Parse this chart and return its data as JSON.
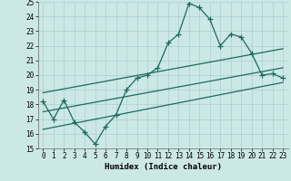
{
  "xlabel": "Humidex (Indice chaleur)",
  "bg_color": "#cce8e6",
  "line_color": "#1a6b5a",
  "grid_color": "#aacfcd",
  "xlim": [
    -0.5,
    23.5
  ],
  "ylim": [
    15,
    25
  ],
  "yticks": [
    15,
    16,
    17,
    18,
    19,
    20,
    21,
    22,
    23,
    24,
    25
  ],
  "xticks": [
    0,
    1,
    2,
    3,
    4,
    5,
    6,
    7,
    8,
    9,
    10,
    11,
    12,
    13,
    14,
    15,
    16,
    17,
    18,
    19,
    20,
    21,
    22,
    23
  ],
  "main_x": [
    0,
    1,
    2,
    3,
    4,
    5,
    6,
    7,
    8,
    9,
    10,
    11,
    12,
    13,
    14,
    15,
    16,
    17,
    18,
    19,
    20,
    21,
    22,
    23
  ],
  "main_y": [
    18.2,
    17.0,
    18.3,
    16.8,
    16.1,
    15.3,
    16.5,
    17.3,
    19.0,
    19.8,
    20.0,
    20.5,
    22.2,
    22.8,
    24.9,
    24.6,
    23.8,
    22.0,
    22.8,
    22.6,
    21.5,
    20.0,
    20.1,
    19.8
  ],
  "line2_x": [
    0,
    23
  ],
  "line2_y": [
    18.8,
    21.8
  ],
  "line3_x": [
    0,
    23
  ],
  "line3_y": [
    17.5,
    20.5
  ],
  "line4_x": [
    0,
    23
  ],
  "line4_y": [
    16.3,
    19.5
  ],
  "marker": "+",
  "markersize": 4,
  "linewidth": 0.9
}
